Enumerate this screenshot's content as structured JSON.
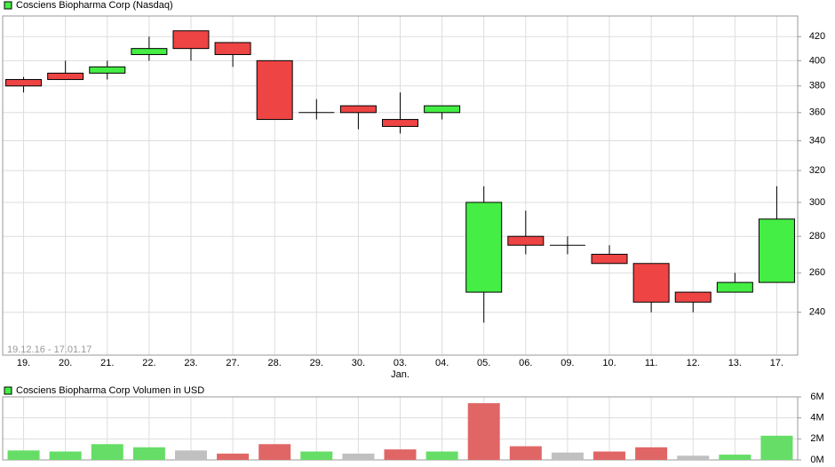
{
  "chart_data": [
    {
      "type": "candlestick",
      "title": "Cosciens Biopharma Corp (Nasdaq)",
      "legend_color": "#44ee44",
      "period": "19.12.16 - 17.01.17",
      "categories": [
        "19.",
        "20.",
        "21.",
        "22.",
        "23.",
        "27.",
        "28.",
        "29.",
        "30.",
        "03.",
        "04.",
        "05.",
        "06.",
        "09.",
        "10.",
        "11.",
        "12.",
        "13.",
        "17."
      ],
      "month_labels": [
        {
          "at": "03.",
          "text": "Jan."
        }
      ],
      "open": [
        385,
        390,
        390,
        405,
        425,
        415,
        400,
        360,
        365,
        355,
        360,
        250,
        280,
        275,
        270,
        265,
        250,
        250,
        255
      ],
      "high": [
        387,
        400,
        400,
        420,
        425,
        415,
        400,
        370,
        365,
        375,
        365,
        310,
        295,
        280,
        275,
        265,
        250,
        260,
        310
      ],
      "low": [
        375,
        385,
        385,
        400,
        400,
        395,
        355,
        355,
        348,
        345,
        355,
        235,
        270,
        270,
        265,
        240,
        240,
        250,
        255
      ],
      "close": [
        380,
        385,
        395,
        410,
        410,
        405,
        355,
        360,
        360,
        350,
        365,
        300,
        275,
        275,
        265,
        245,
        245,
        255,
        290
      ],
      "up_color": "#44ee44",
      "down_color": "#ee4444",
      "log_scale": true,
      "ylim": [
        220,
        438
      ],
      "yticks": [
        240,
        260,
        280,
        300,
        320,
        340,
        360,
        380,
        400,
        420
      ],
      "grid": true
    },
    {
      "type": "bar",
      "title": "Cosciens Biopharma Corp Volumen in USD",
      "legend_color": "#44ee44",
      "values": [
        0.9,
        0.8,
        1.5,
        1.2,
        0.9,
        0.6,
        1.5,
        0.8,
        0.6,
        1.0,
        0.8,
        5.4,
        1.3,
        0.7,
        0.8,
        1.2,
        0.4,
        0.5,
        2.3
      ],
      "colors": [
        "#66dd66",
        "#66dd66",
        "#66dd66",
        "#66dd66",
        "#c0c0c0",
        "#e06666",
        "#e06666",
        "#66dd66",
        "#c0c0c0",
        "#e06666",
        "#66dd66",
        "#e06666",
        "#e06666",
        "#c0c0c0",
        "#e06666",
        "#e06666",
        "#c0c0c0",
        "#66dd66",
        "#66dd66"
      ],
      "ylim": [
        0,
        6
      ],
      "yticks": [
        {
          "value": 0,
          "label": "0M"
        },
        {
          "value": 2,
          "label": "2M"
        },
        {
          "value": 4,
          "label": "4M"
        },
        {
          "value": 6,
          "label": "6M"
        }
      ],
      "grid": true
    }
  ]
}
